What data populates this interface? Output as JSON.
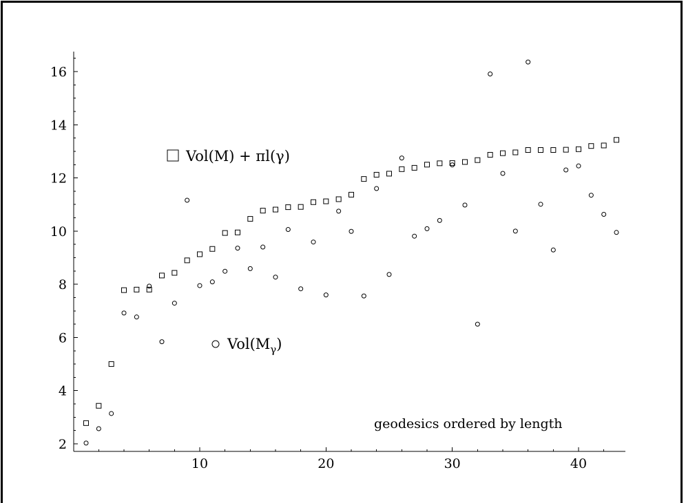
{
  "chart_data": {
    "type": "scatter",
    "title": "",
    "xlabel": "",
    "ylabel": "",
    "xlim": [
      0.5,
      43.5
    ],
    "ylim": [
      1.8,
      16.7
    ],
    "x_ticks": [
      10,
      20,
      30,
      40
    ],
    "y_ticks": [
      2,
      4,
      6,
      8,
      10,
      12,
      14,
      16
    ],
    "series": [
      {
        "name": "Vol(M) + πl(γ)",
        "marker": "square",
        "x": [
          1,
          2,
          3,
          4,
          5,
          6,
          7,
          8,
          9,
          10,
          11,
          12,
          13,
          14,
          15,
          16,
          17,
          18,
          19,
          20,
          21,
          22,
          23,
          24,
          25,
          26,
          27,
          28,
          29,
          30,
          31,
          32,
          33,
          34,
          35,
          36,
          37,
          38,
          39,
          40,
          41,
          42,
          43
        ],
        "values": [
          2.78,
          3.43,
          5.0,
          7.78,
          7.8,
          7.8,
          8.33,
          8.43,
          8.9,
          9.13,
          9.33,
          9.93,
          9.95,
          10.46,
          10.77,
          10.81,
          10.9,
          10.91,
          11.09,
          11.12,
          11.2,
          11.37,
          11.96,
          12.12,
          12.16,
          12.33,
          12.38,
          12.5,
          12.55,
          12.56,
          12.6,
          12.67,
          12.87,
          12.93,
          12.96,
          13.05,
          13.05,
          13.05,
          13.06,
          13.08,
          13.2,
          13.22,
          13.43
        ]
      },
      {
        "name": "Vol(Mγ)",
        "marker": "circle",
        "x": [
          1,
          2,
          3,
          4,
          5,
          6,
          7,
          8,
          9,
          10,
          11,
          12,
          13,
          14,
          15,
          16,
          17,
          18,
          19,
          20,
          21,
          22,
          23,
          24,
          25,
          26,
          27,
          28,
          29,
          30,
          31,
          32,
          33,
          34,
          35,
          36,
          37,
          38,
          39,
          40,
          41,
          42,
          43
        ],
        "values": [
          2.03,
          2.57,
          3.14,
          6.92,
          6.77,
          7.93,
          5.84,
          7.29,
          11.16,
          7.95,
          8.09,
          8.49,
          9.36,
          8.59,
          9.4,
          8.27,
          10.06,
          7.83,
          9.59,
          7.6,
          10.75,
          9.99,
          7.56,
          11.6,
          8.37,
          12.75,
          9.81,
          10.09,
          10.4,
          12.49,
          10.98,
          6.5,
          15.91,
          12.17,
          10.0,
          16.36,
          11.01,
          9.29,
          12.3,
          12.45,
          11.35,
          10.63,
          9.95
        ]
      }
    ],
    "annotations": [
      {
        "text": "geodesics ordered by length"
      }
    ],
    "legend": [
      {
        "marker": "square",
        "label_main": "Vol(M) + πl(γ)"
      },
      {
        "marker": "circle",
        "label_main": "Vol(M",
        "label_sub": "γ",
        "label_tail": ")"
      }
    ],
    "grid": false
  }
}
